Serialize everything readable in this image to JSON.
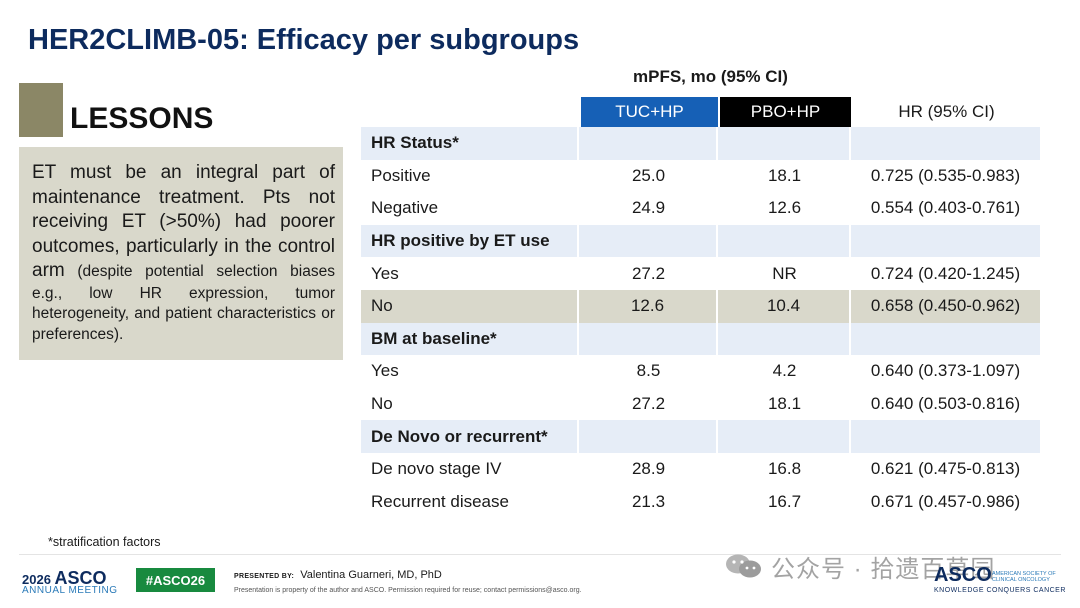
{
  "title": "HER2CLIMB-05: Efficacy per subgroups",
  "lessons": {
    "heading": "LESSONS",
    "text_main": "ET must be an integral part of maintenance treatment. Pts not receiving ET (>50%) had poorer outcomes, particularly in the control arm",
    "text_small": "(despite potential selection biases e.g., low HR expression, tumor heterogeneity, and patient characteristics or preferences)."
  },
  "table": {
    "header": "mPFS, mo (95% CI)",
    "columns": [
      "TUC+HP",
      "PBO+HP",
      "HR (95% CI)"
    ],
    "rows": [
      {
        "type": "section",
        "label": "HR Status*",
        "tuc": "",
        "pbo": "",
        "hr": ""
      },
      {
        "type": "data",
        "label": "Positive",
        "tuc": "25.0",
        "pbo": "18.1",
        "hr": "0.725 (0.535-0.983)"
      },
      {
        "type": "data",
        "label": "Negative",
        "tuc": "24.9",
        "pbo": "12.6",
        "hr": "0.554 (0.403-0.761)"
      },
      {
        "type": "section",
        "label": "HR positive by ET use",
        "tuc": "",
        "pbo": "",
        "hr": ""
      },
      {
        "type": "data",
        "label": "Yes",
        "tuc": "27.2",
        "pbo": "NR",
        "hr": "0.724 (0.420-1.245)"
      },
      {
        "type": "highlight",
        "label": "No",
        "tuc": "12.6",
        "pbo": "10.4",
        "hr": "0.658 (0.450-0.962)"
      },
      {
        "type": "section",
        "label": "BM at baseline*",
        "tuc": "",
        "pbo": "",
        "hr": ""
      },
      {
        "type": "data",
        "label": "Yes",
        "tuc": "8.5",
        "pbo": "4.2",
        "hr": "0.640 (0.373-1.097)"
      },
      {
        "type": "data",
        "label": "No",
        "tuc": "27.2",
        "pbo": "18.1",
        "hr": "0.640 (0.503-0.816)"
      },
      {
        "type": "section",
        "label": "De Novo or recurrent*",
        "tuc": "",
        "pbo": "",
        "hr": ""
      },
      {
        "type": "data",
        "label": "De novo stage IV",
        "tuc": "28.9",
        "pbo": "16.8",
        "hr": "0.621 (0.475-0.813)"
      },
      {
        "type": "data",
        "label": "Recurrent disease",
        "tuc": "21.3",
        "pbo": "16.7",
        "hr": "0.671 (0.457-0.986)"
      }
    ]
  },
  "footnote": "*stratification factors",
  "footer": {
    "year": "2026",
    "asco": "ASCO",
    "meeting": "ANNUAL MEETING",
    "hashtag": "#ASCO26",
    "presented_by_label": "PRESENTED BY:",
    "presenter": "Valentina Guarneri, MD, PhD",
    "disclaimer": "Presentation is property of the author and ASCO. Permission required for reuse; contact permissions@asco.org.",
    "brand": "ASCO",
    "brand_sub": "AMERICAN SOCIETY OF CLINICAL ONCOLOGY",
    "tagline": "KNOWLEDGE CONQUERS CANCER"
  },
  "watermark": "公众号 · 拾遗百草园",
  "colors": {
    "title": "#0d2b5e",
    "tuc_header": "#1660b6",
    "pbo_header": "#000000",
    "section_row": "#e6edf7",
    "highlight_row": "#d9d8cb",
    "lessons_box": "#d9d8cb",
    "lessons_square": "#8b8766",
    "hashtag": "#188a3f"
  }
}
